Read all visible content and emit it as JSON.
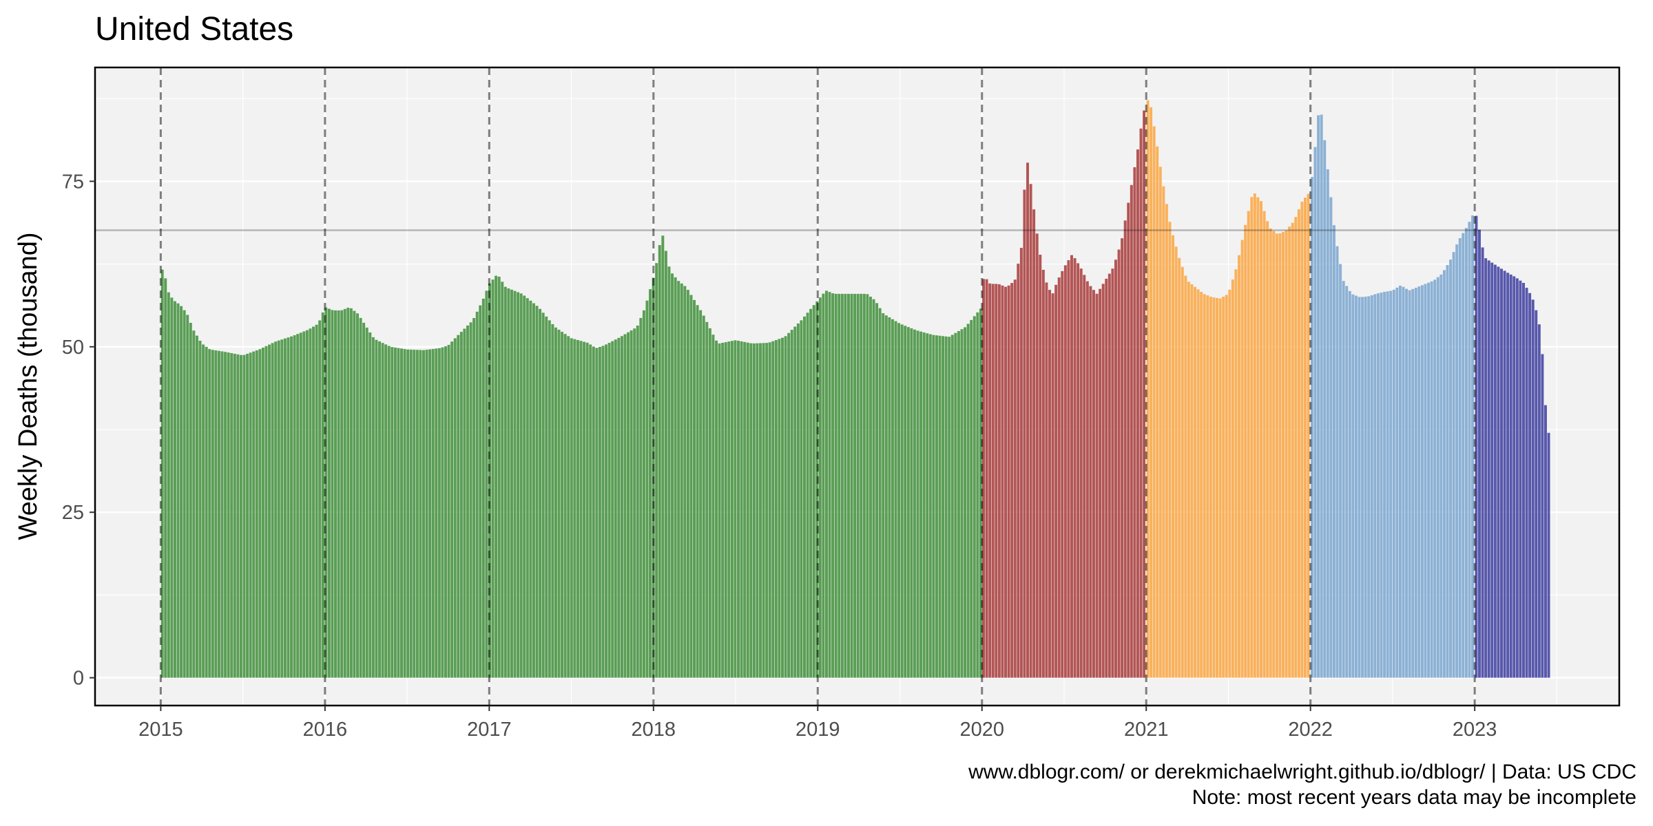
{
  "chart_data": {
    "type": "bar",
    "title": "United States",
    "xlabel": "",
    "ylabel": "Weekly Deaths (thousand)",
    "xlim": [
      2014.6,
      2023.88
    ],
    "ylim": [
      -4.2,
      92.2
    ],
    "yticks": [
      0,
      25,
      50,
      75
    ],
    "xticks": [
      2015,
      2016,
      2017,
      2018,
      2019,
      2020,
      2021,
      2022,
      2023
    ],
    "reference_line": 67.6,
    "grid": true,
    "legend": "none",
    "series": [
      {
        "year_start": 2015,
        "year_end": 2020,
        "color": "#3f8f3a",
        "anchors": [
          [
            0,
            62
          ],
          [
            0.02,
            61.3
          ],
          [
            0.05,
            58
          ],
          [
            0.08,
            57
          ],
          [
            0.12,
            56.3
          ],
          [
            0.16,
            55
          ],
          [
            0.2,
            52.5
          ],
          [
            0.25,
            50.5
          ],
          [
            0.3,
            49.6
          ],
          [
            0.4,
            49.2
          ],
          [
            0.5,
            48.7
          ],
          [
            0.6,
            49.6
          ],
          [
            0.7,
            50.8
          ],
          [
            0.8,
            51.6
          ],
          [
            0.9,
            52.6
          ],
          [
            0.96,
            53.5
          ],
          [
            1.0,
            56
          ],
          [
            1.05,
            55.5
          ],
          [
            1.1,
            55.5
          ],
          [
            1.15,
            56
          ],
          [
            1.2,
            55
          ],
          [
            1.3,
            51.2
          ],
          [
            1.4,
            50
          ],
          [
            1.5,
            49.6
          ],
          [
            1.6,
            49.5
          ],
          [
            1.7,
            49.8
          ],
          [
            1.75,
            50.2
          ],
          [
            1.8,
            51.5
          ],
          [
            1.9,
            54
          ],
          [
            1.96,
            57
          ],
          [
            2.0,
            59.5
          ],
          [
            2.05,
            61
          ],
          [
            2.1,
            59
          ],
          [
            2.2,
            58
          ],
          [
            2.3,
            56
          ],
          [
            2.4,
            53
          ],
          [
            2.5,
            51.3
          ],
          [
            2.6,
            50.6
          ],
          [
            2.65,
            49.8
          ],
          [
            2.7,
            50.2
          ],
          [
            2.8,
            51.5
          ],
          [
            2.9,
            53
          ],
          [
            2.95,
            56
          ],
          [
            3.0,
            60.5
          ],
          [
            3.03,
            64
          ],
          [
            3.05,
            67.6
          ],
          [
            3.08,
            64
          ],
          [
            3.1,
            61.5
          ],
          [
            3.15,
            60
          ],
          [
            3.2,
            59
          ],
          [
            3.3,
            55
          ],
          [
            3.38,
            51
          ],
          [
            3.4,
            50.5
          ],
          [
            3.5,
            51
          ],
          [
            3.6,
            50.5
          ],
          [
            3.7,
            50.6
          ],
          [
            3.8,
            51.5
          ],
          [
            3.9,
            54
          ],
          [
            4.0,
            57
          ],
          [
            4.05,
            58.5
          ],
          [
            4.1,
            58
          ],
          [
            4.2,
            58
          ],
          [
            4.3,
            58
          ],
          [
            4.35,
            57
          ],
          [
            4.4,
            55
          ],
          [
            4.5,
            53.5
          ],
          [
            4.6,
            52.5
          ],
          [
            4.7,
            51.8
          ],
          [
            4.8,
            51.5
          ],
          [
            4.9,
            53
          ],
          [
            5.0,
            56
          ]
        ]
      },
      {
        "year_start": 2020,
        "year_end": 2021,
        "color": "#a8393a",
        "anchors": [
          [
            0,
            60
          ],
          [
            0.02,
            60.5
          ],
          [
            0.05,
            59.5
          ],
          [
            0.1,
            59.5
          ],
          [
            0.15,
            59
          ],
          [
            0.2,
            60
          ],
          [
            0.24,
            65
          ],
          [
            0.27,
            79
          ],
          [
            0.29,
            76
          ],
          [
            0.31,
            72
          ],
          [
            0.33,
            68
          ],
          [
            0.36,
            63
          ],
          [
            0.4,
            59
          ],
          [
            0.43,
            58
          ],
          [
            0.46,
            60
          ],
          [
            0.5,
            62
          ],
          [
            0.55,
            64
          ],
          [
            0.6,
            62
          ],
          [
            0.65,
            59.5
          ],
          [
            0.7,
            58
          ],
          [
            0.75,
            60
          ],
          [
            0.8,
            62
          ],
          [
            0.85,
            66
          ],
          [
            0.9,
            73
          ],
          [
            0.95,
            80
          ],
          [
            0.98,
            85
          ],
          [
            1.0,
            87
          ]
        ]
      },
      {
        "year_start": 2021,
        "year_end": 2022,
        "color": "#fba641",
        "anchors": [
          [
            0,
            87
          ],
          [
            0.02,
            87.5
          ],
          [
            0.05,
            83
          ],
          [
            0.1,
            75
          ],
          [
            0.15,
            68
          ],
          [
            0.2,
            63.5
          ],
          [
            0.25,
            60
          ],
          [
            0.3,
            59
          ],
          [
            0.35,
            58
          ],
          [
            0.4,
            57.5
          ],
          [
            0.45,
            57.3
          ],
          [
            0.5,
            58
          ],
          [
            0.55,
            62
          ],
          [
            0.6,
            68
          ],
          [
            0.65,
            73.5
          ],
          [
            0.7,
            72
          ],
          [
            0.75,
            68
          ],
          [
            0.8,
            67
          ],
          [
            0.85,
            67.5
          ],
          [
            0.9,
            69
          ],
          [
            0.95,
            72
          ],
          [
            1.0,
            73.5
          ]
        ]
      },
      {
        "year_start": 2022,
        "year_end": 2023,
        "color": "#7aa6d0",
        "anchors": [
          [
            0,
            73.5
          ],
          [
            0.02,
            78
          ],
          [
            0.05,
            85.5
          ],
          [
            0.07,
            85
          ],
          [
            0.1,
            78
          ],
          [
            0.15,
            67
          ],
          [
            0.2,
            60
          ],
          [
            0.25,
            58
          ],
          [
            0.3,
            57.5
          ],
          [
            0.35,
            57.6
          ],
          [
            0.4,
            58
          ],
          [
            0.45,
            58.3
          ],
          [
            0.5,
            58.5
          ],
          [
            0.55,
            59.3
          ],
          [
            0.6,
            58.5
          ],
          [
            0.65,
            59
          ],
          [
            0.7,
            59.5
          ],
          [
            0.75,
            60
          ],
          [
            0.8,
            61
          ],
          [
            0.85,
            63
          ],
          [
            0.9,
            66
          ],
          [
            0.95,
            68
          ],
          [
            1.0,
            70.5
          ]
        ]
      },
      {
        "year_start": 2023,
        "year_end": 2023.46,
        "color": "#3d3da0",
        "anchors": [
          [
            0,
            70.5
          ],
          [
            0.02,
            69
          ],
          [
            0.04,
            66
          ],
          [
            0.06,
            63.5
          ],
          [
            0.1,
            62.8
          ],
          [
            0.15,
            62
          ],
          [
            0.2,
            61.2
          ],
          [
            0.25,
            60.5
          ],
          [
            0.3,
            59.6
          ],
          [
            0.35,
            57.5
          ],
          [
            0.38,
            55
          ],
          [
            0.4,
            52.5
          ],
          [
            0.42,
            46.5
          ],
          [
            0.44,
            37
          ],
          [
            0.46,
            37
          ]
        ]
      }
    ],
    "caption_lines": [
      "www.dblogr.com/ or derekmichaelwright.github.io/dblogr/ | Data: US CDC",
      "Note: most recent years data may be incomplete"
    ]
  }
}
